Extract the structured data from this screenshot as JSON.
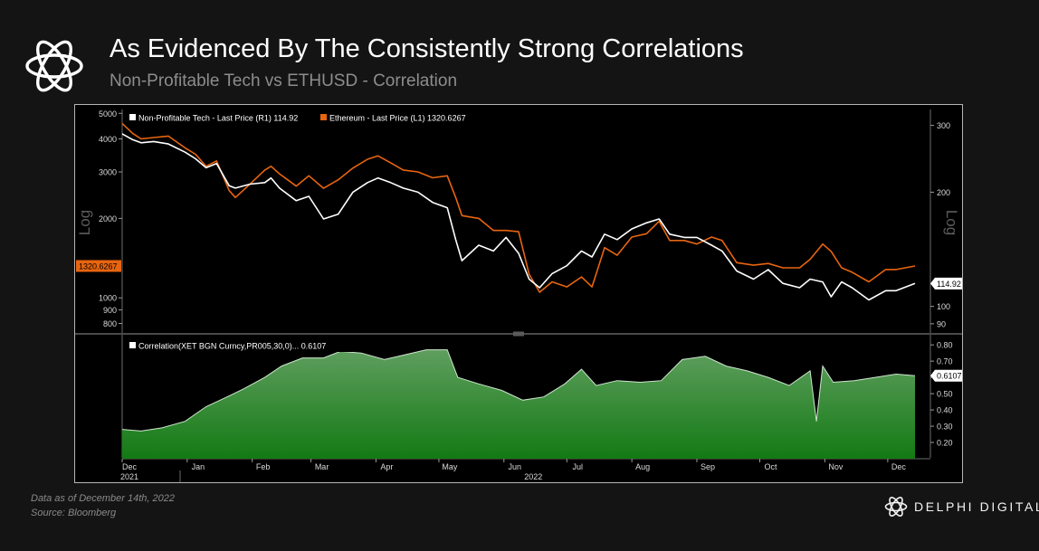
{
  "header": {
    "title": "As Evidenced By The Consistently Strong Correlations",
    "subtitle": "Non-Profitable Tech vs ETHUSD - Correlation",
    "logo_icon": "delphi-knot-icon"
  },
  "footer": {
    "note": "Data as of December 14th, 2022",
    "source": "Source: Bloomberg",
    "brand": "DELPHI DIGITAL",
    "brand_icon": "delphi-knot-icon"
  },
  "colors": {
    "background": "#141414",
    "chart_bg": "#000000",
    "tech": "#ffffff",
    "ethereum": "#e8650f",
    "correlation_fill_top": "#5f9e5f",
    "correlation_fill_bottom": "#137a13",
    "correlation_line": "#cfe6cf"
  },
  "chart_data": [
    {
      "type": "line",
      "title": "",
      "left_axis_label": "",
      "right_axis_label": "Log",
      "scale": "log",
      "legend": [
        {
          "name": "Non-Profitable Tech - Last Price (R1) 114.92",
          "color": "#ffffff"
        },
        {
          "name": "Ethereum - Last Price (L1) 1320.6267",
          "color": "#e8650f"
        }
      ],
      "legend_placement": "top-left",
      "left_ticks": [
        5000,
        4000,
        3000,
        2000,
        1000,
        900,
        800
      ],
      "right_ticks": [
        300,
        200,
        100,
        90
      ],
      "ylim_left": [
        760,
        5050
      ],
      "ylim_right": [
        87,
        325
      ],
      "last_value_left": "1320.6267",
      "last_value_right": "114.92",
      "x_months": [
        "Dec",
        "Jan",
        "Feb",
        "Mar",
        "Apr",
        "May",
        "Jun",
        "Jul",
        "Aug",
        "Sep",
        "Oct",
        "Nov",
        "Dec"
      ],
      "x_years": [
        "2021",
        "2022"
      ],
      "series": [
        {
          "name": "Ethereum - Last Price (L1) 1320.6267",
          "axis": "left",
          "x": [
            "2021-12-01",
            "2021-12-06",
            "2021-12-10",
            "2021-12-16",
            "2021-12-23",
            "2021-12-31",
            "2022-01-05",
            "2022-01-10",
            "2022-01-15",
            "2022-01-21",
            "2022-01-24",
            "2022-01-31",
            "2022-02-07",
            "2022-02-10",
            "2022-02-14",
            "2022-02-22",
            "2022-02-28",
            "2022-03-07",
            "2022-03-14",
            "2022-03-21",
            "2022-03-28",
            "2022-04-02",
            "2022-04-08",
            "2022-04-14",
            "2022-04-21",
            "2022-04-28",
            "2022-05-05",
            "2022-05-09",
            "2022-05-12",
            "2022-05-20",
            "2022-05-27",
            "2022-06-02",
            "2022-06-08",
            "2022-06-13",
            "2022-06-18",
            "2022-06-24",
            "2022-07-01",
            "2022-07-08",
            "2022-07-13",
            "2022-07-19",
            "2022-07-25",
            "2022-08-01",
            "2022-08-08",
            "2022-08-14",
            "2022-08-19",
            "2022-08-26",
            "2022-09-01",
            "2022-09-08",
            "2022-09-13",
            "2022-09-20",
            "2022-09-28",
            "2022-10-05",
            "2022-10-12",
            "2022-10-20",
            "2022-10-25",
            "2022-10-31",
            "2022-11-04",
            "2022-11-09",
            "2022-11-14",
            "2022-11-22",
            "2022-11-30",
            "2022-12-05",
            "2022-12-14"
          ],
          "values": [
            4580,
            4200,
            4000,
            4050,
            4100,
            3700,
            3500,
            3150,
            3300,
            2550,
            2400,
            2700,
            3050,
            3150,
            2950,
            2650,
            2900,
            2600,
            2800,
            3100,
            3350,
            3450,
            3250,
            3050,
            3000,
            2850,
            2900,
            2400,
            2050,
            2000,
            1800,
            1800,
            1780,
            1230,
            1050,
            1150,
            1100,
            1200,
            1100,
            1550,
            1450,
            1700,
            1750,
            1950,
            1650,
            1650,
            1600,
            1700,
            1650,
            1360,
            1330,
            1350,
            1300,
            1300,
            1400,
            1600,
            1500,
            1300,
            1250,
            1150,
            1280,
            1280,
            1320.6267
          ]
        },
        {
          "name": "Non-Profitable Tech - Last Price (R1) 114.92",
          "axis": "right",
          "x": [
            "2021-12-01",
            "2021-12-06",
            "2021-12-10",
            "2021-12-16",
            "2021-12-23",
            "2021-12-31",
            "2022-01-05",
            "2022-01-10",
            "2022-01-15",
            "2022-01-21",
            "2022-01-24",
            "2022-01-31",
            "2022-02-07",
            "2022-02-10",
            "2022-02-14",
            "2022-02-22",
            "2022-02-28",
            "2022-03-07",
            "2022-03-14",
            "2022-03-21",
            "2022-03-28",
            "2022-04-02",
            "2022-04-08",
            "2022-04-14",
            "2022-04-21",
            "2022-04-28",
            "2022-05-05",
            "2022-05-09",
            "2022-05-12",
            "2022-05-20",
            "2022-05-27",
            "2022-06-02",
            "2022-06-08",
            "2022-06-13",
            "2022-06-18",
            "2022-06-24",
            "2022-07-01",
            "2022-07-08",
            "2022-07-13",
            "2022-07-19",
            "2022-07-25",
            "2022-08-01",
            "2022-08-08",
            "2022-08-14",
            "2022-08-19",
            "2022-08-26",
            "2022-09-01",
            "2022-09-08",
            "2022-09-13",
            "2022-09-20",
            "2022-09-28",
            "2022-10-05",
            "2022-10-12",
            "2022-10-20",
            "2022-10-25",
            "2022-10-31",
            "2022-11-04",
            "2022-11-09",
            "2022-11-14",
            "2022-11-22",
            "2022-11-30",
            "2022-12-05",
            "2022-12-14"
          ],
          "values": [
            285,
            275,
            270,
            272,
            268,
            255,
            245,
            232,
            238,
            208,
            205,
            210,
            212,
            218,
            205,
            190,
            195,
            170,
            175,
            200,
            212,
            218,
            212,
            205,
            200,
            188,
            182,
            150,
            132,
            145,
            140,
            152,
            138,
            118,
            112,
            122,
            128,
            140,
            135,
            155,
            150,
            160,
            166,
            170,
            155,
            152,
            152,
            145,
            140,
            124,
            118,
            125,
            115,
            112,
            118,
            116,
            106,
            116,
            112,
            104,
            110,
            110,
            114.92
          ]
        }
      ]
    },
    {
      "type": "area",
      "title": "",
      "legend": [
        {
          "name": "Correlation(XET BGN Curncy,PR005,30,0)... 0.6107",
          "color": "#ffffff"
        }
      ],
      "legend_placement": "top-left",
      "right_ticks": [
        0.8,
        0.7,
        0.6,
        0.5,
        0.4,
        0.3,
        0.2
      ],
      "ylim": [
        0.1,
        0.84
      ],
      "last_value": "0.6107",
      "series": [
        {
          "name": "Correlation(XET BGN Curncy,PR005,30,0)... 0.6107",
          "x": [
            "2021-12-01",
            "2021-12-10",
            "2021-12-20",
            "2021-12-31",
            "2022-01-10",
            "2022-01-20",
            "2022-01-28",
            "2022-02-07",
            "2022-02-15",
            "2022-02-25",
            "2022-03-07",
            "2022-03-15",
            "2022-03-25",
            "2022-04-05",
            "2022-04-15",
            "2022-04-25",
            "2022-05-05",
            "2022-05-10",
            "2022-05-20",
            "2022-05-31",
            "2022-06-10",
            "2022-06-20",
            "2022-06-30",
            "2022-07-08",
            "2022-07-15",
            "2022-07-25",
            "2022-08-05",
            "2022-08-15",
            "2022-08-25",
            "2022-09-05",
            "2022-09-15",
            "2022-09-25",
            "2022-10-05",
            "2022-10-15",
            "2022-10-25",
            "2022-10-28",
            "2022-10-31",
            "2022-11-05",
            "2022-11-15",
            "2022-11-25",
            "2022-12-05",
            "2022-12-14"
          ],
          "values": [
            0.28,
            0.27,
            0.29,
            0.33,
            0.42,
            0.48,
            0.53,
            0.6,
            0.67,
            0.72,
            0.72,
            0.76,
            0.75,
            0.71,
            0.74,
            0.77,
            0.77,
            0.6,
            0.56,
            0.52,
            0.46,
            0.48,
            0.56,
            0.65,
            0.55,
            0.58,
            0.57,
            0.58,
            0.71,
            0.73,
            0.67,
            0.64,
            0.6,
            0.55,
            0.64,
            0.33,
            0.67,
            0.57,
            0.58,
            0.6,
            0.62,
            0.6107
          ]
        }
      ]
    }
  ]
}
